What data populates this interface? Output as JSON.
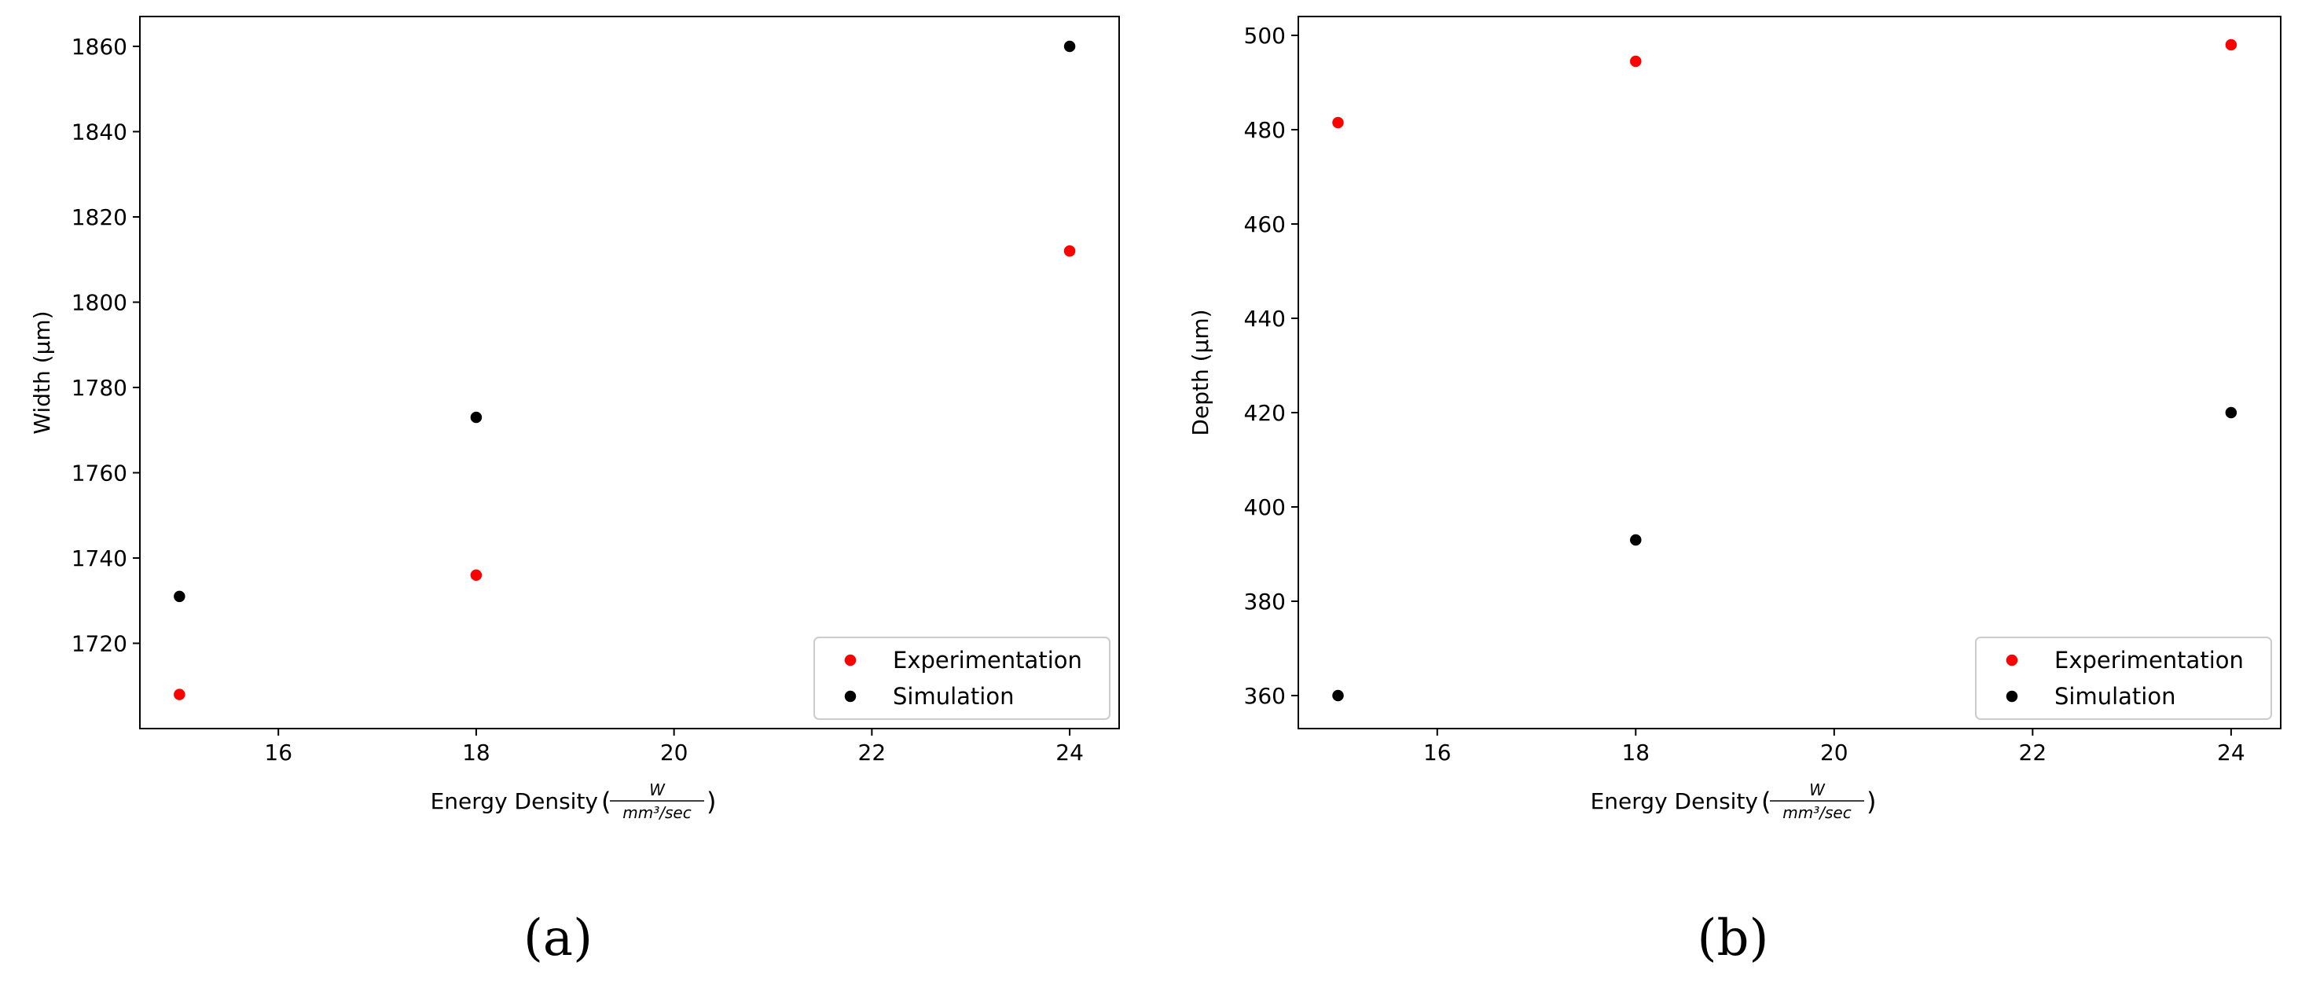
{
  "chart_data": [
    {
      "type": "scatter",
      "xlabel": "Energy Density",
      "xlabel_unit_num": "W",
      "xlabel_unit_den": "mm³/sec",
      "ylabel": "Width (μm)",
      "xlim": [
        14.6,
        24.5
      ],
      "ylim": [
        1700,
        1867
      ],
      "xticks": [
        16,
        18,
        20,
        22,
        24
      ],
      "yticks": [
        1720,
        1740,
        1760,
        1780,
        1800,
        1820,
        1840,
        1860
      ],
      "grid": false,
      "legend_position": "lower-right",
      "series": [
        {
          "name": "Experimentation",
          "color": "#ff0000",
          "x": [
            15,
            18,
            24
          ],
          "y": [
            1708,
            1736,
            1812
          ]
        },
        {
          "name": "Simulation",
          "color": "#000000",
          "x": [
            15,
            18,
            24
          ],
          "y": [
            1731,
            1773,
            1860
          ]
        }
      ],
      "caption": "(a)"
    },
    {
      "type": "scatter",
      "xlabel": "Energy Density",
      "xlabel_unit_num": "W",
      "xlabel_unit_den": "mm³/sec",
      "ylabel": "Depth (μm)",
      "xlim": [
        14.6,
        24.5
      ],
      "ylim": [
        353,
        504
      ],
      "xticks": [
        16,
        18,
        20,
        22,
        24
      ],
      "yticks": [
        360,
        380,
        400,
        420,
        440,
        460,
        480,
        500
      ],
      "grid": false,
      "legend_position": "lower-right",
      "series": [
        {
          "name": "Experimentation",
          "color": "#ff0000",
          "x": [
            15,
            18,
            24
          ],
          "y": [
            481.5,
            494.5,
            498
          ]
        },
        {
          "name": "Simulation",
          "color": "#000000",
          "x": [
            15,
            18,
            24
          ],
          "y": [
            360,
            393,
            420
          ]
        }
      ],
      "caption": "(b)"
    }
  ]
}
